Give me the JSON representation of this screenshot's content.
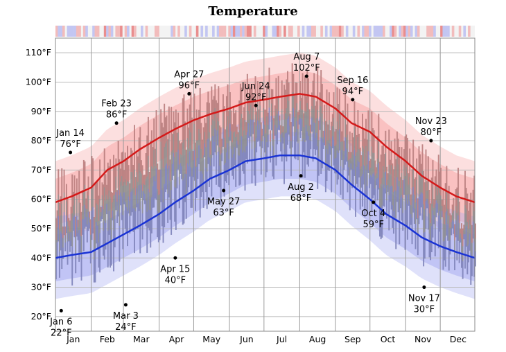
{
  "chart_data": {
    "type": "line",
    "title": "Temperature",
    "xlabel": "",
    "ylabel": "",
    "ylim": [
      15,
      115
    ],
    "y_ticks": [
      "20°F",
      "30°F",
      "40°F",
      "50°F",
      "60°F",
      "70°F",
      "80°F",
      "90°F",
      "100°F",
      "110°F"
    ],
    "y_tick_values": [
      20,
      30,
      40,
      50,
      60,
      70,
      80,
      90,
      100,
      110
    ],
    "x_ticks": [
      "Jan",
      "Feb",
      "Mar",
      "Apr",
      "May",
      "Jun",
      "Jul",
      "Aug",
      "Sep",
      "Oct",
      "Nov",
      "Dec"
    ],
    "grid": true,
    "colors": {
      "high_line": "#d41a1a",
      "low_line": "#1a33d4",
      "high_band": "#f7a3a3",
      "low_band": "#a3a8f0",
      "daily_range": "#8a8a8a"
    },
    "series": [
      {
        "daily_day": [
          1,
          15,
          32,
          46,
          60,
          74,
          91,
          105,
          121,
          135,
          152,
          166,
          182,
          196,
          213,
          227,
          244,
          258,
          274,
          288,
          305,
          319,
          335,
          349,
          365
        ],
        "high": [
          59,
          61,
          64,
          70,
          73,
          77,
          81,
          84,
          87,
          89,
          91,
          93,
          94,
          95,
          96,
          95,
          91,
          86,
          83,
          78,
          73,
          68,
          64,
          61,
          59
        ]
      },
      {
        "daily_day": [
          1,
          15,
          32,
          46,
          60,
          74,
          91,
          105,
          121,
          135,
          152,
          166,
          182,
          196,
          213,
          227,
          244,
          258,
          274,
          288,
          305,
          319,
          335,
          349,
          365
        ],
        "low": [
          40,
          41,
          42,
          45,
          48,
          51,
          55,
          59,
          63,
          67,
          70,
          73,
          74,
          75,
          75,
          74,
          70,
          65,
          60,
          55,
          51,
          47,
          44,
          42,
          40
        ]
      }
    ],
    "annotations": [
      {
        "date": "Jan 6",
        "day": 6,
        "value_label": "22°F",
        "value": 22,
        "type": "low"
      },
      {
        "date": "Jan 14",
        "day": 14,
        "value_label": "76°F",
        "value": 76,
        "type": "high"
      },
      {
        "date": "Feb 23",
        "day": 54,
        "value_label": "86°F",
        "value": 86,
        "type": "high"
      },
      {
        "date": "Mar 3",
        "day": 62,
        "value_label": "24°F",
        "value": 24,
        "type": "low"
      },
      {
        "date": "Apr 15",
        "day": 105,
        "value_label": "40°F",
        "value": 40,
        "type": "low"
      },
      {
        "date": "Apr 27",
        "day": 117,
        "value_label": "96°F",
        "value": 96,
        "type": "high"
      },
      {
        "date": "May 27",
        "day": 147,
        "value_label": "63°F",
        "value": 63,
        "type": "low"
      },
      {
        "date": "Jun 24",
        "day": 175,
        "value_label": "92°F",
        "value": 92,
        "type": "high"
      },
      {
        "date": "Aug 2",
        "day": 214,
        "value_label": "68°F",
        "value": 68,
        "type": "low"
      },
      {
        "date": "Aug 7",
        "day": 219,
        "value_label": "102°F",
        "value": 102,
        "type": "high"
      },
      {
        "date": "Sep 16",
        "day": 259,
        "value_label": "94°F",
        "value": 94,
        "type": "high"
      },
      {
        "date": "Oct 4",
        "day": 277,
        "value_label": "59°F",
        "value": 59,
        "type": "low"
      },
      {
        "date": "Nov 17",
        "day": 321,
        "value_label": "30°F",
        "value": 30,
        "type": "low"
      },
      {
        "date": "Nov 23",
        "day": 327,
        "value_label": "80°F",
        "value": 80,
        "type": "high"
      }
    ]
  }
}
